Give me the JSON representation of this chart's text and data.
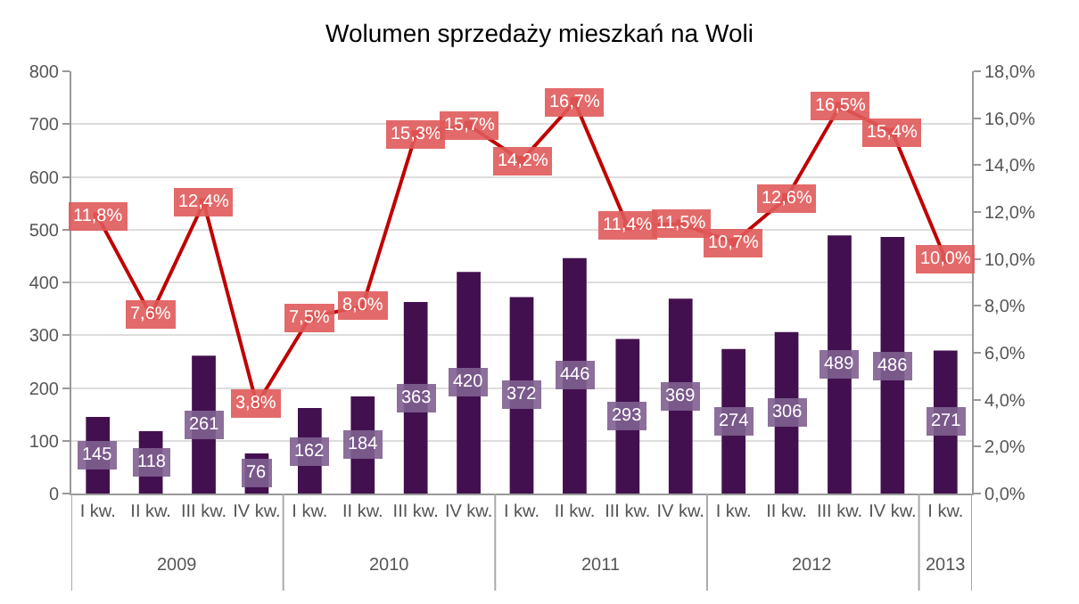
{
  "chart_data": {
    "type": "bar",
    "title": "Wolumen sprzedaży mieszkań na Woli",
    "categories": [
      "I kw.",
      "II kw.",
      "III kw.",
      "IV kw.",
      "I kw.",
      "II kw.",
      "III kw.",
      "IV kw.",
      "I kw.",
      "II kw.",
      "III kw.",
      "IV kw.",
      "I kw.",
      "II kw.",
      "III kw.",
      "IV kw.",
      "I kw."
    ],
    "series": [
      {
        "color": "#43104f",
        "values": [
          145,
          118,
          261,
          76,
          162,
          184,
          363,
          420,
          372,
          446,
          293,
          369,
          274,
          306,
          489,
          486,
          271
        ],
        "value_labels": [
          "145",
          "118",
          "261",
          "76",
          "162",
          "184",
          "363",
          "420",
          "372",
          "446",
          "293",
          "369",
          "274",
          "306",
          "489",
          "486",
          "271"
        ]
      },
      {
        "type": "line",
        "axis": "y2",
        "color": "#c00000",
        "marker": "square",
        "line_style": "solid",
        "values": [
          11.8,
          7.6,
          12.4,
          3.8,
          7.5,
          8.0,
          15.3,
          15.7,
          14.2,
          16.7,
          11.4,
          11.5,
          10.7,
          12.6,
          16.5,
          15.4,
          10.0
        ],
        "value_labels": [
          "11,8%",
          "7,6%",
          "12,4%",
          "3,8%",
          "7,5%",
          "8,0%",
          "15,3%",
          "15,7%",
          "14,2%",
          "16,7%",
          "11,4%",
          "11,5%",
          "10,7%",
          "12,6%",
          "16,5%",
          "15,4%",
          "10,0%"
        ]
      }
    ],
    "ylim": [
      0,
      800
    ],
    "yticks": [
      0,
      100,
      200,
      300,
      400,
      500,
      600,
      700,
      800
    ],
    "y2lim": [
      0,
      18
    ],
    "y2ticks": [
      {
        "value": 0,
        "label": "0,0%"
      },
      {
        "value": 2,
        "label": "2,0%"
      },
      {
        "value": 4,
        "label": "4,0%"
      },
      {
        "value": 6,
        "label": "6,0%"
      },
      {
        "value": 8,
        "label": "8,0%"
      },
      {
        "value": 10,
        "label": "10,0%"
      },
      {
        "value": 12,
        "label": "12,0%"
      },
      {
        "value": 14,
        "label": "14,0%"
      },
      {
        "value": 16,
        "label": "16,0%"
      },
      {
        "value": 18,
        "label": "18,0%"
      }
    ],
    "annotations": [
      "2009",
      "2010",
      "2011",
      "2012",
      "2013"
    ],
    "grid": "y"
  }
}
